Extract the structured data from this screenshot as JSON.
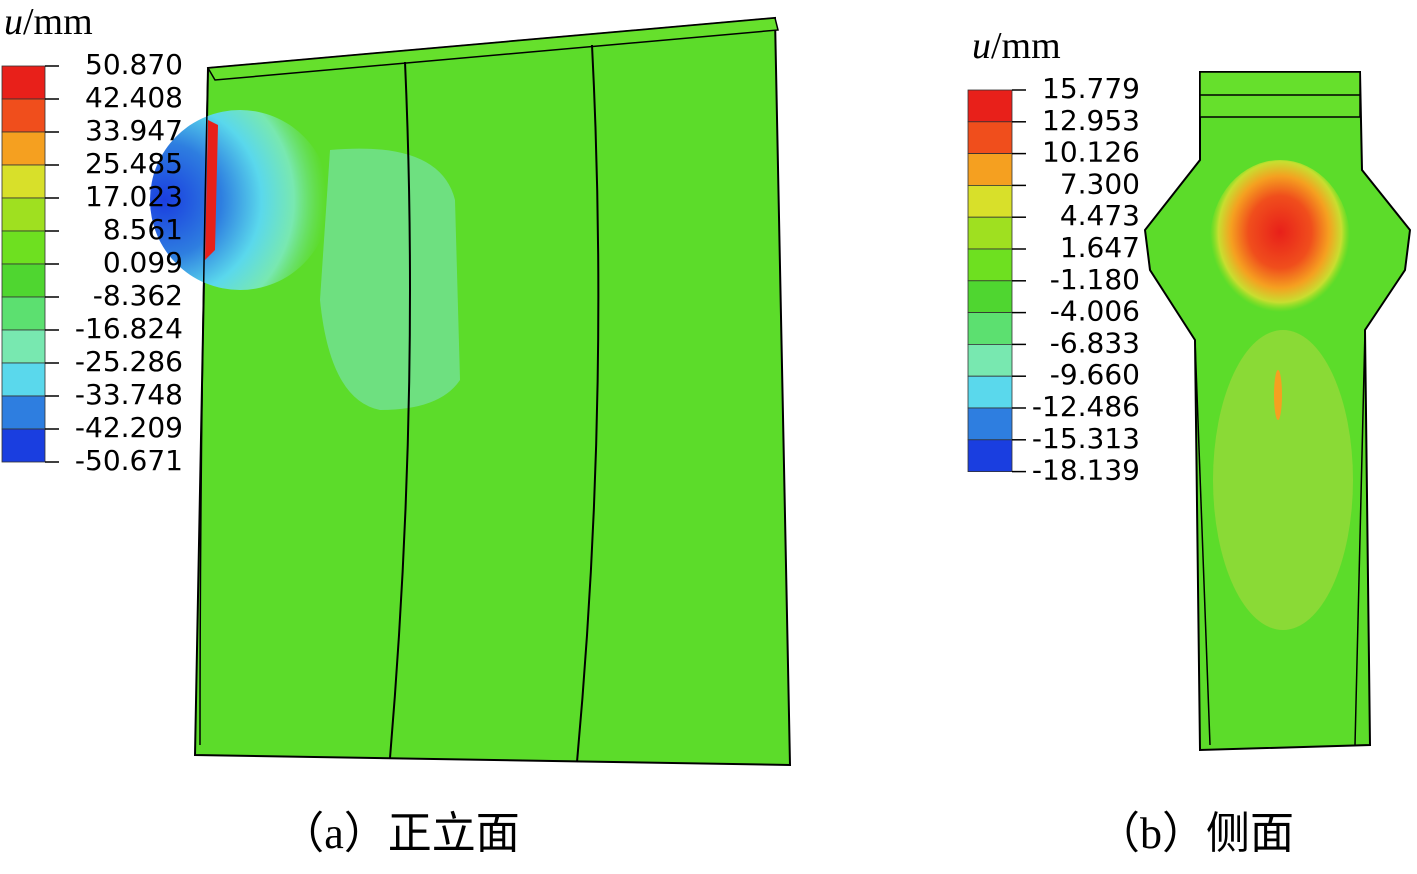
{
  "panels": [
    {
      "unit_var": "u",
      "unit": "/mm",
      "legend": [
        "50.870",
        "42.408",
        "33.947",
        "25.485",
        "17.023",
        "8.561",
        "0.099",
        "-8.362",
        "-16.824",
        "-25.286",
        "-33.748",
        "-42.209",
        "-50.671"
      ],
      "caption": "（a）正立面"
    },
    {
      "unit_var": "u",
      "unit": "/mm",
      "legend": [
        "15.779",
        "12.953",
        "10.126",
        "7.300",
        "4.473",
        "1.647",
        "-1.180",
        "-4.006",
        "-6.833",
        "-9.660",
        "-12.486",
        "-15.313",
        "-18.139"
      ],
      "caption": "（b）侧面"
    }
  ]
}
